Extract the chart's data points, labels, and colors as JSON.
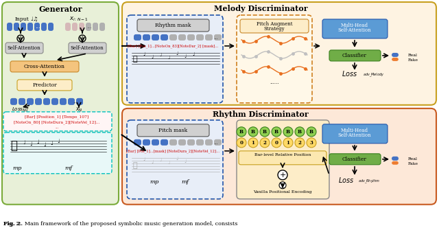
{
  "fig_caption": "Fig. 2.  Main framework of the proposed symbolic music generation model, consists",
  "title_melody": "Melody Discriminator",
  "title_rhythm": "Rhythm Discriminator",
  "title_generator": "Generator",
  "bg_color_generator": "#e8f0d8",
  "bg_color_melody": "#fef3e2",
  "bg_color_rhythm": "#fde8d8",
  "bg_color_white": "#ffffff",
  "box_color_gray": "#c8c8c8",
  "box_color_blue": "#5b9bd5",
  "box_color_green": "#70ad47",
  "box_color_orange": "#ed7d31",
  "box_color_yellow": "#ffd966",
  "box_color_lightblue": "#bdd7ee",
  "box_color_lightgreen": "#e2efda",
  "box_color_salmon": "#fce4d6"
}
